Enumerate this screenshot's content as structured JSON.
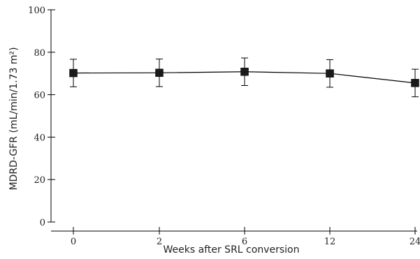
{
  "chart_data": {
    "type": "line",
    "xlabel": "Weeks after SRL conversion",
    "ylabel": "MDRD-GFR (mL/min/1.73 m²)",
    "categories": [
      "0",
      "2",
      "6",
      "12",
      "24"
    ],
    "ylim": [
      0,
      100
    ],
    "yticks": [
      0,
      20,
      40,
      60,
      80,
      100
    ],
    "grid": false,
    "series": [
      {
        "values": [
          70.2,
          70.3,
          70.8,
          70.0,
          65.5
        ],
        "error": [
          6.5,
          6.5,
          6.5,
          6.5,
          6.5
        ]
      }
    ],
    "marker": "square",
    "error_bars": true
  }
}
